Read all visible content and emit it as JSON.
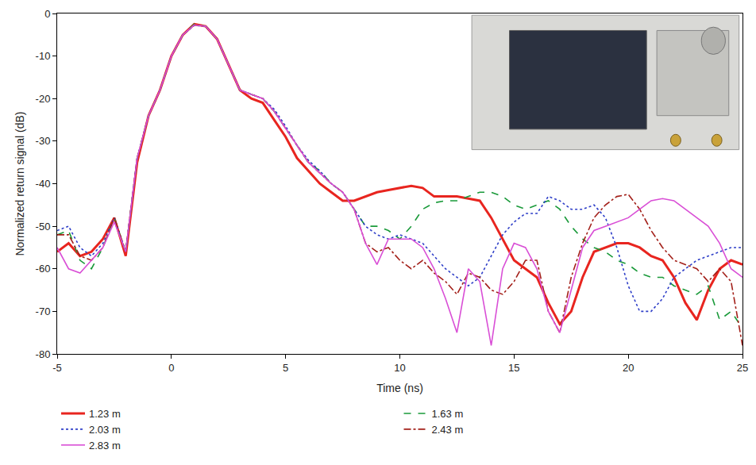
{
  "chart_data": {
    "type": "line",
    "x_label": "Time (ns)",
    "y_label": "Normalized return signal (dB)",
    "xlim": [
      -5,
      25
    ],
    "xticks": [
      -5,
      0,
      5,
      10,
      15,
      20,
      25
    ],
    "ylim": [
      -80,
      0
    ],
    "yticks": [
      -80,
      -70,
      -60,
      -50,
      -40,
      -30,
      -20,
      -10,
      0
    ],
    "grid": false,
    "legend": "bottom",
    "x": [
      -5,
      -4.5,
      -4,
      -3.5,
      -3,
      -2.5,
      -2,
      -1.5,
      -1,
      -0.5,
      0,
      0.5,
      1,
      1.5,
      2,
      2.5,
      3,
      3.5,
      4,
      4.5,
      5,
      5.5,
      6,
      6.5,
      7,
      7.5,
      8,
      8.5,
      9,
      9.5,
      10,
      10.5,
      11,
      11.5,
      12,
      12.5,
      13,
      13.5,
      14,
      14.5,
      15,
      15.5,
      16,
      16.5,
      17,
      17.5,
      18,
      18.5,
      19,
      19.5,
      20,
      20.5,
      21,
      21.5,
      22,
      22.5,
      23,
      23.5,
      24,
      24.5,
      25
    ],
    "series": [
      {
        "name": "1.23 m",
        "color": "#e8251f",
        "line_style": "solid",
        "values": [
          -56,
          -54,
          -57,
          -56,
          -53,
          -48,
          -57,
          -35,
          -24,
          -18,
          -10,
          -5,
          -2.5,
          -3,
          -6,
          -12,
          -18,
          -20,
          -21,
          -25,
          -29,
          -34,
          -37,
          -40,
          -42,
          -44,
          -44,
          -43,
          -42,
          -41.5,
          -41,
          -40.5,
          -41,
          -43,
          -43,
          -43,
          -43.5,
          -44,
          -48,
          -53,
          -58,
          -60,
          -62,
          -68,
          -73,
          -70,
          -62,
          -56,
          -55,
          -54,
          -54,
          -55,
          -57,
          -58,
          -62,
          -68,
          -72,
          -65,
          -60,
          -58,
          -59
        ]
      },
      {
        "name": "1.63 m",
        "color": "#1a9a3a",
        "line_style": "dash",
        "values": [
          -52,
          -51,
          -58,
          -60,
          -55,
          -48,
          -56,
          -34,
          -24,
          -18,
          -10,
          -5,
          -2.5,
          -3,
          -6,
          -12,
          -18,
          -19,
          -20,
          -23,
          -27,
          -31,
          -35,
          -37,
          -40,
          -42,
          -46,
          -50,
          -50,
          -51,
          -53,
          -50,
          -46,
          -44.5,
          -44,
          -44,
          -43,
          -42,
          -42,
          -43,
          -45,
          -46,
          -45,
          -44,
          -46,
          -50,
          -53,
          -55,
          -56,
          -58,
          -59,
          -61,
          -62,
          -62,
          -64,
          -65,
          -66,
          -64,
          -72,
          -70,
          -74
        ]
      },
      {
        "name": "2.03 m",
        "color": "#2f3fc8",
        "line_style": "dot",
        "values": [
          -51,
          -50,
          -55,
          -57,
          -54,
          -48,
          -56,
          -34,
          -24,
          -18,
          -10,
          -5,
          -2.8,
          -3,
          -6,
          -12,
          -18,
          -19,
          -20,
          -22.5,
          -26.5,
          -31,
          -34.5,
          -37,
          -40,
          -42,
          -46,
          -50,
          -52,
          -53,
          -52,
          -53,
          -54,
          -57,
          -60,
          -62,
          -64,
          -62,
          -57,
          -52,
          -49,
          -47,
          -47,
          -43,
          -44,
          -46,
          -46,
          -45,
          -48,
          -55,
          -64,
          -70,
          -70,
          -67,
          -62,
          -60,
          -58,
          -57,
          -56,
          -55,
          -55
        ]
      },
      {
        "name": "2.43 m",
        "color": "#a3201a",
        "line_style": "dashdot",
        "values": [
          -52,
          -52,
          -57,
          -58,
          -55,
          -48,
          -56,
          -34,
          -24,
          -18,
          -10,
          -5,
          -2.7,
          -3,
          -6,
          -12,
          -18,
          -19,
          -20,
          -23,
          -27,
          -31,
          -35,
          -37.5,
          -40,
          -42,
          -46,
          -54,
          -56,
          -55,
          -58,
          -60,
          -58,
          -61,
          -63,
          -66,
          -61,
          -62,
          -65,
          -66,
          -63,
          -58,
          -58,
          -70,
          -75,
          -62,
          -54,
          -48,
          -45,
          -43,
          -42.5,
          -46,
          -51,
          -55,
          -58,
          -59,
          -60,
          -63,
          -60,
          -63,
          -78
        ]
      },
      {
        "name": "2.83 m",
        "color": "#d94fd6",
        "line_style": "solid",
        "values": [
          -55,
          -60,
          -61,
          -58,
          -55,
          -49,
          -56,
          -34,
          -24,
          -18,
          -10,
          -5,
          -2.7,
          -3,
          -6,
          -12,
          -18,
          -19,
          -20,
          -23,
          -27,
          -31,
          -35,
          -37.5,
          -40,
          -42,
          -46,
          -54,
          -59,
          -53,
          -53,
          -53,
          -55,
          -60,
          -67,
          -75,
          -60,
          -63,
          -78,
          -60,
          -54,
          -55,
          -60,
          -70,
          -75,
          -65,
          -55,
          -51,
          -50,
          -49,
          -48,
          -46,
          -44,
          -43.5,
          -44,
          -46,
          -48,
          -50,
          -54,
          -60,
          -62
        ]
      }
    ]
  }
}
